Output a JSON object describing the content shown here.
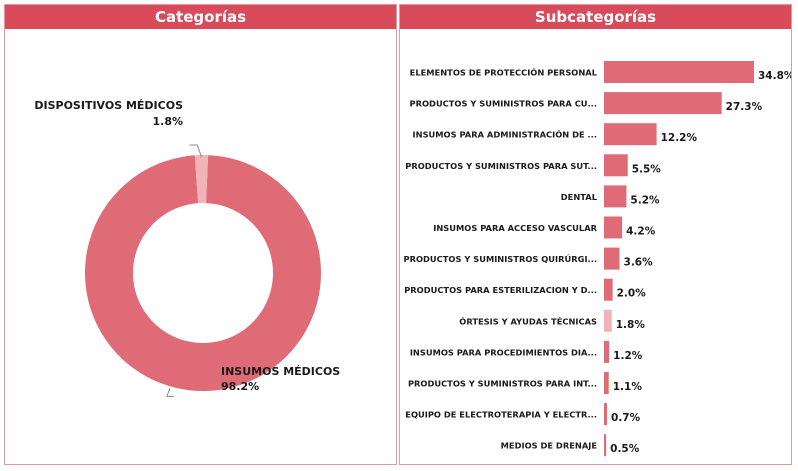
{
  "colors": {
    "header_bg": "#d94a5a",
    "bar": "#df6b76",
    "bar_highlight": "#f1b2b8",
    "label_text": "#1a1a1a"
  },
  "headers": {
    "left": "Categorías",
    "right": "Subcategorías"
  },
  "chart_data": [
    {
      "type": "pie",
      "subtype": "donut",
      "title": "Categorías",
      "slices": [
        {
          "label": "INSUMOS MÉDICOS",
          "value": 98.2,
          "value_label": "98.2%"
        },
        {
          "label": "DISPOSITIVOS MÉDICOS",
          "value": 1.8,
          "value_label": "1.8%"
        }
      ]
    },
    {
      "type": "bar",
      "orientation": "horizontal",
      "title": "Subcategorías",
      "categories": [
        "ELEMENTOS DE PROTECCIÓN PERSONAL",
        "PRODUCTOS Y SUMINISTROS PARA CU...",
        "INSUMOS PARA ADMINISTRACIÓN DE ...",
        "PRODUCTOS Y SUMINISTROS PARA SUT...",
        "DENTAL",
        "INSUMOS PARA ACCESO VASCULAR",
        "PRODUCTOS Y SUMINISTROS QUIRÚRGI...",
        "PRODUCTOS PARA ESTERILIZACION Y D...",
        "ÓRTESIS Y AYUDAS TÉCNICAS",
        "INSUMOS PARA PROCEDIMIENTOS DIA...",
        "PRODUCTOS Y SUMINISTROS PARA INT...",
        "EQUIPO DE ELECTROTERAPIA Y ELECTR...",
        "MEDIOS DE DRENAJE"
      ],
      "values": [
        34.8,
        27.3,
        12.2,
        5.5,
        5.2,
        4.2,
        3.6,
        2.0,
        1.8,
        1.2,
        1.1,
        0.7,
        0.5
      ],
      "value_labels": [
        "34.8%",
        "27.3%",
        "12.2%",
        "5.5%",
        "5.2%",
        "4.2%",
        "3.6%",
        "2.0%",
        "1.8%",
        "1.2%",
        "1.1%",
        "0.7%",
        "0.5%"
      ],
      "highlighted_category": "ÓRTESIS Y AYUDAS TÉCNICAS"
    }
  ]
}
